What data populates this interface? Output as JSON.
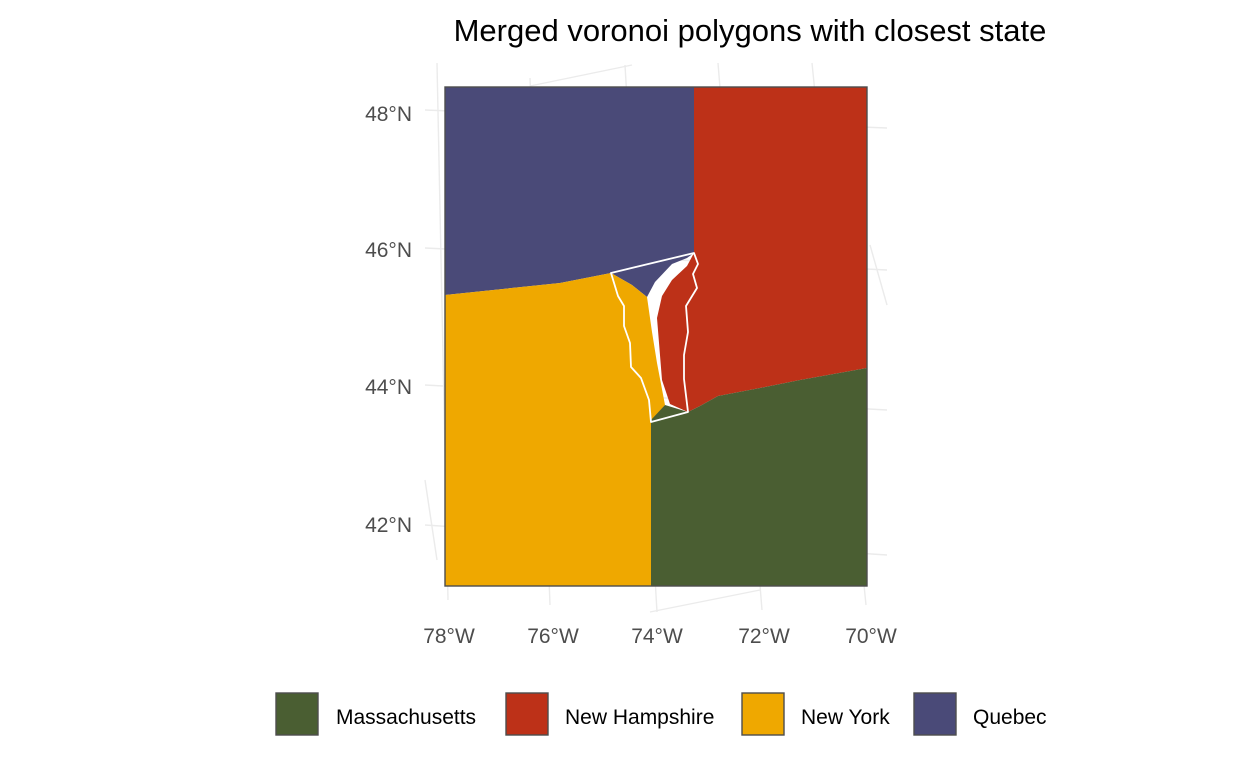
{
  "title": "Merged voronoi polygons with closest state",
  "chart_data": {
    "type": "map",
    "title": "Merged voronoi polygons with closest state",
    "lat_ticks": [
      "42°N",
      "44°N",
      "46°N",
      "48°N"
    ],
    "lon_ticks": [
      "78°W",
      "76°W",
      "74°W",
      "72°W",
      "70°W"
    ],
    "legend_position": "bottom",
    "legend": [
      {
        "name": "Massachusetts",
        "color": "#4a5e32"
      },
      {
        "name": "New Hampshire",
        "color": "#bd3118"
      },
      {
        "name": "New York",
        "color": "#efa800"
      },
      {
        "name": "Quebec",
        "color": "#4a4a78"
      }
    ],
    "regions": [
      {
        "name": "Quebec",
        "color": "#4a4a78"
      },
      {
        "name": "New Hampshire",
        "color": "#bd3118"
      },
      {
        "name": "New York",
        "color": "#efa800"
      },
      {
        "name": "Massachusetts",
        "color": "#4a5e32"
      }
    ],
    "outline_color": "#ffffff",
    "grid": true
  }
}
